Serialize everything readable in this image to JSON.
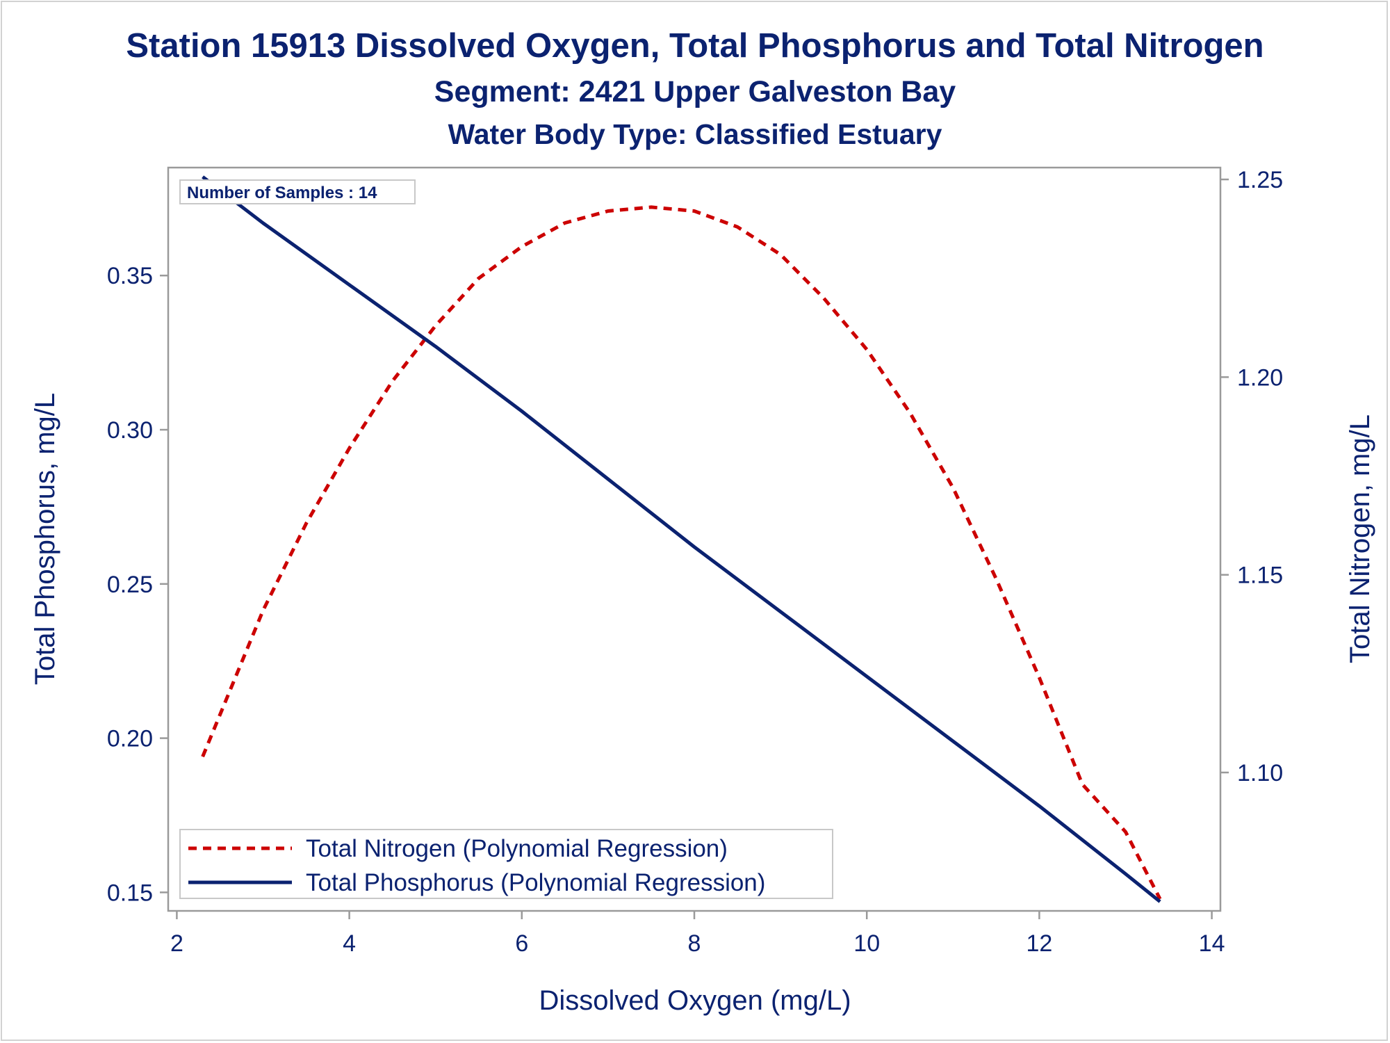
{
  "titles": {
    "line1": "Station 15913  Dissolved Oxygen, Total Phosphorus and Total Nitrogen",
    "line2": "Segment: 2421  Upper Galveston Bay",
    "line3": "Water Body Type: Classified Estuary"
  },
  "inset": {
    "label": "Number of Samples : 14"
  },
  "colors": {
    "nitrogen": "#cc0000",
    "phosphorus": "#0b2270",
    "text": "#0b2270",
    "axis": "#9a9a9a"
  },
  "chart_data": {
    "type": "line",
    "title": "Station 15913  Dissolved Oxygen, Total Phosphorus and Total Nitrogen",
    "xlabel": "Dissolved Oxygen (mg/L)",
    "ylabel": "Total Phosphorus, mg/L",
    "y2label": "Total Nitrogen, mg/L",
    "xlim": [
      1.9,
      14.1
    ],
    "ylim": [
      0.144,
      0.385
    ],
    "y2lim": [
      1.065,
      1.253
    ],
    "xticks": [
      "2",
      "4",
      "6",
      "8",
      "10",
      "12",
      "14"
    ],
    "yticks": [
      "0.15",
      "0.20",
      "0.25",
      "0.30",
      "0.35"
    ],
    "y2ticks": [
      "1.10",
      "1.15",
      "1.20",
      "1.25"
    ],
    "grid": false,
    "legend_position": "bottom-left",
    "series": [
      {
        "name": "Total Nitrogen (Polynomial Regression)",
        "axis": "right",
        "style": "dashed",
        "x": [
          2.3,
          3.0,
          3.5,
          4.0,
          4.5,
          5.0,
          5.5,
          6.0,
          6.5,
          7.0,
          7.5,
          8.0,
          8.5,
          9.0,
          9.5,
          10.0,
          10.5,
          11.0,
          11.5,
          12.0,
          12.5,
          13.0,
          13.4
        ],
        "values": [
          1.104,
          1.141,
          1.163,
          1.182,
          1.199,
          1.213,
          1.225,
          1.233,
          1.239,
          1.242,
          1.243,
          1.242,
          1.238,
          1.231,
          1.22,
          1.207,
          1.191,
          1.172,
          1.149,
          1.124,
          1.097,
          1.085,
          1.068
        ]
      },
      {
        "name": "Total Phosphorus (Polynomial Regression)",
        "axis": "left",
        "style": "solid",
        "x": [
          2.3,
          3.0,
          4.0,
          5.0,
          6.0,
          7.0,
          8.0,
          9.0,
          10.0,
          11.0,
          12.0,
          13.0,
          13.4
        ],
        "values": [
          0.382,
          0.367,
          0.347,
          0.327,
          0.306,
          0.284,
          0.262,
          0.241,
          0.22,
          0.199,
          0.178,
          0.156,
          0.147
        ]
      }
    ]
  }
}
